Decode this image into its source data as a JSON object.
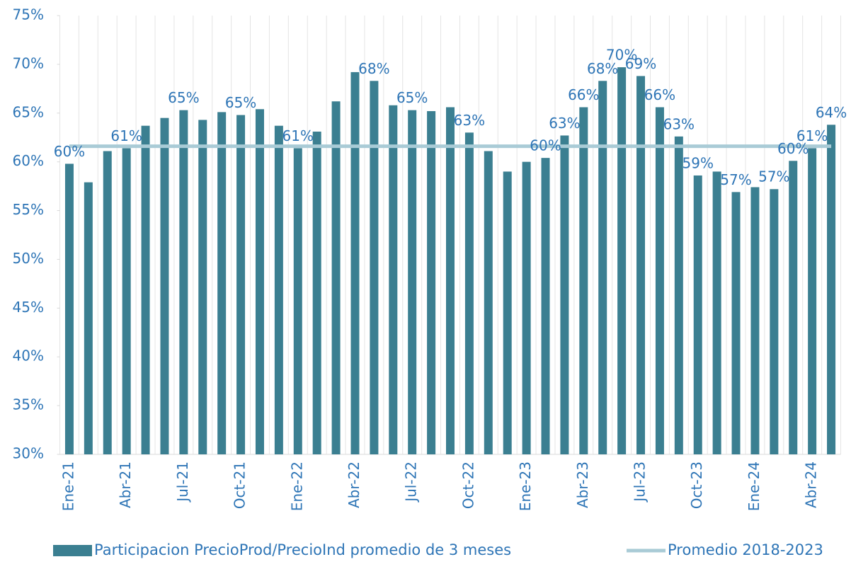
{
  "chart_data": {
    "type": "bar",
    "categories": [
      "Ene-21",
      null,
      null,
      "Abr-21",
      null,
      null,
      "Jul-21",
      null,
      null,
      "Oct-21",
      null,
      null,
      "Ene-22",
      null,
      null,
      "Abr-22",
      null,
      null,
      "Jul-22",
      null,
      null,
      "Oct-22",
      null,
      null,
      "Ene-23",
      null,
      null,
      "Abr-23",
      null,
      null,
      "Jul-23",
      null,
      null,
      "Oct-23",
      null,
      null,
      "Ene-24",
      null,
      null,
      "Abr-24",
      null
    ],
    "series": [
      {
        "name": "Participacion PrecioProd/PrecioInd promedio de 3 meses",
        "color": "#3b7f91",
        "values": [
          59.8,
          57.9,
          61.1,
          61.4,
          63.7,
          64.5,
          65.3,
          64.3,
          65.1,
          64.8,
          65.4,
          63.7,
          61.4,
          63.1,
          66.2,
          69.2,
          68.3,
          65.8,
          65.3,
          65.2,
          65.6,
          63.0,
          61.1,
          59.0,
          60.0,
          60.4,
          62.7,
          65.6,
          68.3,
          69.7,
          68.8,
          65.6,
          62.6,
          58.6,
          59.0,
          56.9,
          57.4,
          57.2,
          60.1,
          61.4,
          63.8
        ],
        "value_labels": [
          "60%",
          null,
          null,
          "61%",
          null,
          null,
          "65%",
          null,
          null,
          "65%",
          null,
          null,
          "61%",
          null,
          null,
          null,
          "68%",
          null,
          "65%",
          null,
          null,
          "63%",
          null,
          null,
          null,
          "60%",
          "63%",
          "66%",
          "68%",
          "70%",
          "69%",
          "66%",
          "63%",
          "59%",
          null,
          "57%",
          null,
          "57%",
          "60%",
          "61%",
          "64%"
        ]
      },
      {
        "name": "Promedio 2018-2023",
        "color": "#a9cbd6",
        "type": "line",
        "values": [
          61.6,
          61.6,
          61.6,
          61.6,
          61.6,
          61.6,
          61.6,
          61.6,
          61.6,
          61.6,
          61.6,
          61.6,
          61.6,
          61.6,
          61.6,
          61.6,
          61.6,
          61.6,
          61.6,
          61.6,
          61.6,
          61.6,
          61.6,
          61.6,
          61.6,
          61.6,
          61.6,
          61.6,
          61.6,
          61.6,
          61.6,
          61.6,
          61.6,
          61.6,
          61.6,
          61.6,
          61.6,
          61.6,
          61.6,
          61.6,
          61.6
        ]
      }
    ],
    "ylim": [
      30,
      75
    ],
    "yticks": [
      {
        "value": 30,
        "label": "30%"
      },
      {
        "value": 35,
        "label": "35%"
      },
      {
        "value": 40,
        "label": "40%"
      },
      {
        "value": 45,
        "label": "45%"
      },
      {
        "value": 50,
        "label": "50%"
      },
      {
        "value": 55,
        "label": "55%"
      },
      {
        "value": 60,
        "label": "60%"
      },
      {
        "value": 65,
        "label": "65%"
      },
      {
        "value": 70,
        "label": "70%"
      },
      {
        "value": 75,
        "label": "75%"
      }
    ],
    "grid": true,
    "legend": "bottom"
  }
}
